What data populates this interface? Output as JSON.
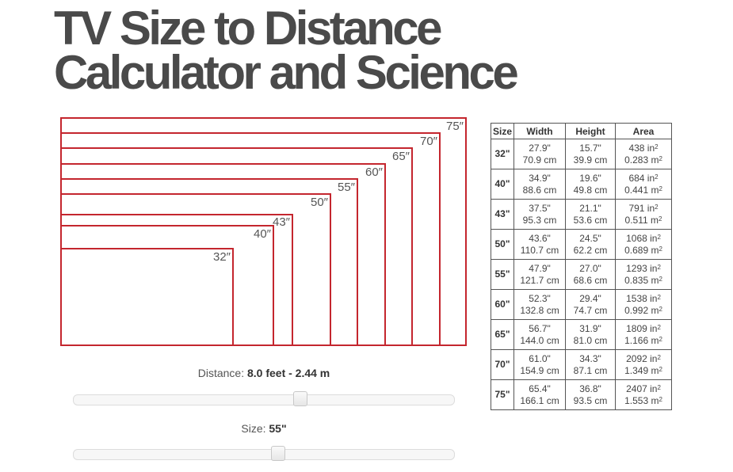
{
  "title": {
    "line1": "TV Size to Distance",
    "line2": "Calculator and Science"
  },
  "diagram": {
    "labels": [
      "75″",
      "70″",
      "65″",
      "60″",
      "55″",
      "50″",
      "43″",
      "40″",
      "32″"
    ],
    "stroke_color": "#c4262e"
  },
  "distance": {
    "label": "Distance:",
    "value": "8.0 feet - 2.44 m",
    "slider_fraction": 0.6
  },
  "size": {
    "label": "Size:",
    "value": "55\"",
    "slider_fraction": 0.54
  },
  "table": {
    "headers": [
      "Size",
      "Width",
      "Height",
      "Area"
    ],
    "rows": [
      {
        "size": "32\"",
        "w_in": "27.9\"",
        "w_cm": "70.9 cm",
        "h_in": "15.7\"",
        "h_cm": "39.9 cm",
        "a_in": "438 in",
        "a_m": "0.283 m"
      },
      {
        "size": "40\"",
        "w_in": "34.9\"",
        "w_cm": "88.6 cm",
        "h_in": "19.6\"",
        "h_cm": "49.8 cm",
        "a_in": "684 in",
        "a_m": "0.441 m"
      },
      {
        "size": "43\"",
        "w_in": "37.5\"",
        "w_cm": "95.3 cm",
        "h_in": "21.1\"",
        "h_cm": "53.6 cm",
        "a_in": "791 in",
        "a_m": "0.511 m"
      },
      {
        "size": "50\"",
        "w_in": "43.6\"",
        "w_cm": "110.7 cm",
        "h_in": "24.5\"",
        "h_cm": "62.2 cm",
        "a_in": "1068 in",
        "a_m": "0.689 m"
      },
      {
        "size": "55\"",
        "w_in": "47.9\"",
        "w_cm": "121.7 cm",
        "h_in": "27.0\"",
        "h_cm": "68.6 cm",
        "a_in": "1293 in",
        "a_m": "0.835 m"
      },
      {
        "size": "60\"",
        "w_in": "52.3\"",
        "w_cm": "132.8 cm",
        "h_in": "29.4\"",
        "h_cm": "74.7 cm",
        "a_in": "1538 in",
        "a_m": "0.992 m"
      },
      {
        "size": "65\"",
        "w_in": "56.7\"",
        "w_cm": "144.0 cm",
        "h_in": "31.9\"",
        "h_cm": "81.0 cm",
        "a_in": "1809 in",
        "a_m": "1.166 m"
      },
      {
        "size": "70\"",
        "w_in": "61.0\"",
        "w_cm": "154.9 cm",
        "h_in": "34.3\"",
        "h_cm": "87.1 cm",
        "a_in": "2092 in",
        "a_m": "1.349 m"
      },
      {
        "size": "75\"",
        "w_in": "65.4\"",
        "w_cm": "166.1 cm",
        "h_in": "36.8\"",
        "h_cm": "93.5 cm",
        "a_in": "2407 in",
        "a_m": "1.553 m"
      }
    ],
    "exponent": "2"
  }
}
